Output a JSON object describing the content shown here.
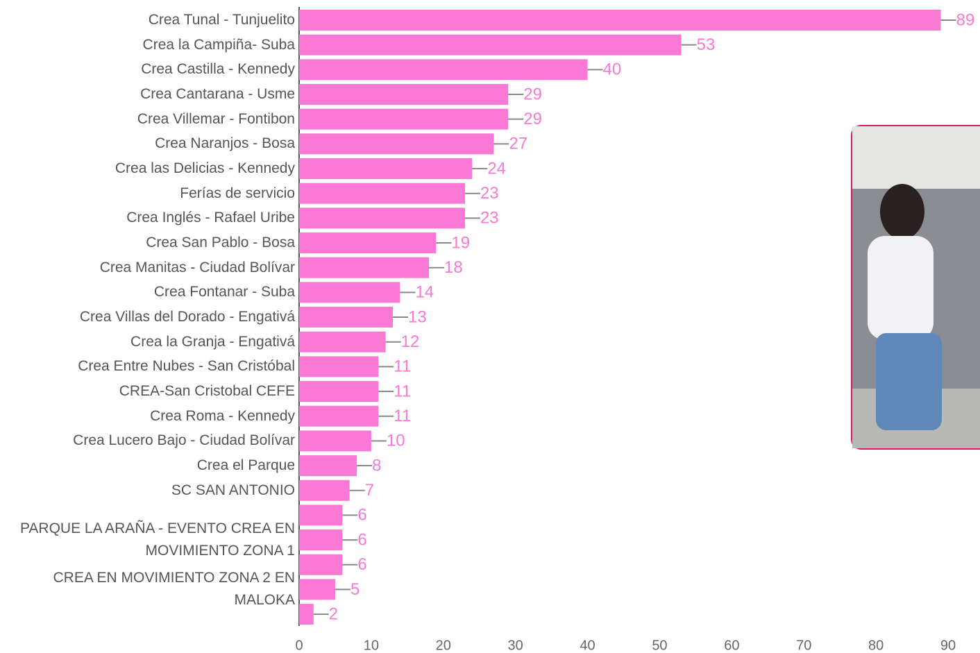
{
  "chart_data": {
    "type": "bar",
    "orientation": "horizontal",
    "categories": [
      "Crea Tunal - Tunjuelito",
      "Crea la Campiña- Suba",
      "Crea Castilla - Kennedy",
      "Crea Cantarana - Usme",
      "Crea Villemar - Fontibon",
      "Crea Naranjos - Bosa",
      "Crea las Delicias - Kennedy",
      "Ferías de servicio",
      "Crea Inglés - Rafael Uribe",
      "Crea San Pablo - Bosa",
      "Crea Manitas - Ciudad Bolívar",
      "Crea Fontanar - Suba",
      "Crea Villas del Dorado - Engativá",
      "Crea la Granja - Engativá",
      "Crea Entre Nubes - San Cristóbal",
      "CREA-San Cristobal CEFE",
      "Crea Roma - Kennedy",
      "Crea Lucero Bajo - Ciudad Bolívar",
      "Crea el Parque",
      "SC SAN ANTONIO",
      null,
      "PARQUE LA ARAÑA - EVENTO CREA EN MOVIMIENTO ZONA 1",
      null,
      "CREA EN MOVIMIENTO ZONA 2 EN MALOKA",
      null
    ],
    "values": [
      89,
      53,
      40,
      29,
      29,
      27,
      24,
      23,
      23,
      19,
      18,
      14,
      13,
      12,
      11,
      11,
      11,
      10,
      8,
      7,
      6,
      6,
      6,
      5,
      2
    ],
    "color": "#f979d4",
    "xlim": [
      0,
      90
    ],
    "xticks": [
      0,
      10,
      20,
      30,
      40,
      50,
      60,
      70,
      80,
      90
    ]
  }
}
